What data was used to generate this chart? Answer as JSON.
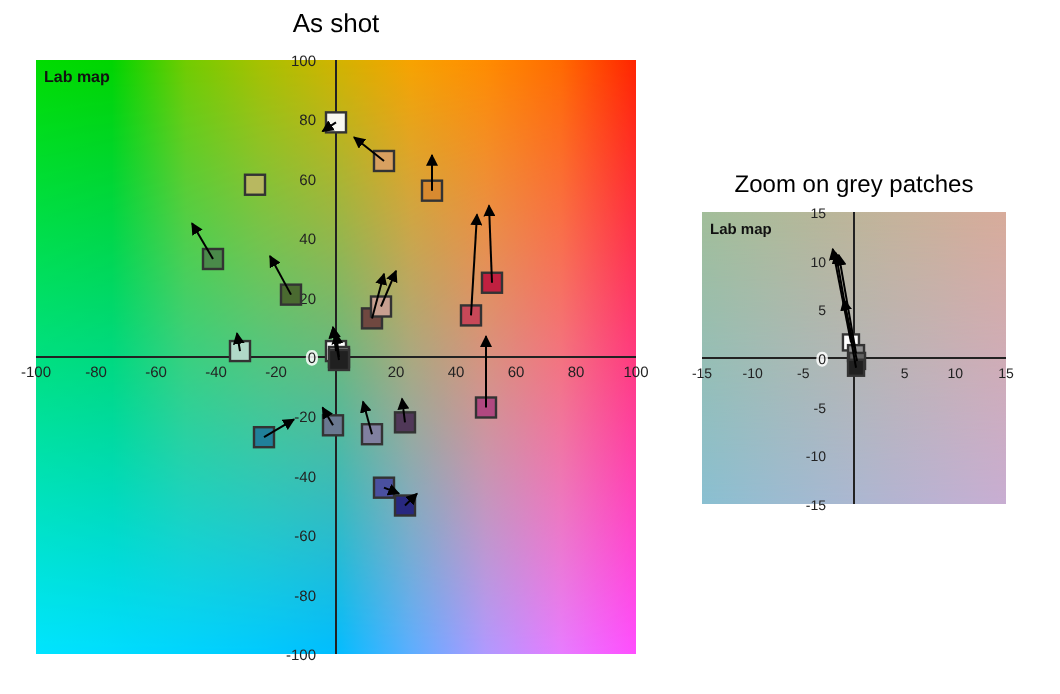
{
  "chart_data": [
    {
      "type": "scatter",
      "title": "As shot",
      "annotations": [
        "Lab map"
      ],
      "xlim": [
        -100,
        100
      ],
      "ylim": [
        -100,
        100
      ],
      "xticks": [
        -100,
        -80,
        -60,
        -40,
        -20,
        20,
        40,
        60,
        80,
        100
      ],
      "yticks": [
        -100,
        -80,
        -60,
        -40,
        -20,
        0,
        20,
        40,
        60,
        80,
        100
      ],
      "marker": "square",
      "series": [
        {
          "type": "line",
          "marker": "none",
          "x": [
            0,
            -4.5
          ],
          "values": [
            79,
            76
          ],
          "color": "#000000"
        },
        {
          "type": "line",
          "marker": "none",
          "x": [
            16,
            6
          ],
          "values": [
            66,
            74
          ],
          "color": "#000000"
        },
        {
          "type": "line",
          "marker": "none",
          "x": [
            32,
            32
          ],
          "values": [
            56,
            68
          ],
          "color": "#000000"
        },
        {
          "type": "line",
          "marker": "none",
          "x": [
            -41,
            -48
          ],
          "values": [
            33,
            45
          ],
          "color": "#000000"
        },
        {
          "type": "line",
          "marker": "none",
          "x": [
            -15,
            -22
          ],
          "values": [
            21,
            34
          ],
          "color": "#000000"
        },
        {
          "type": "line",
          "marker": "none",
          "x": [
            12,
            16
          ],
          "values": [
            13,
            28
          ],
          "color": "#000000"
        },
        {
          "type": "line",
          "marker": "none",
          "x": [
            15,
            20
          ],
          "values": [
            17,
            29
          ],
          "color": "#000000"
        },
        {
          "type": "line",
          "marker": "none",
          "x": [
            45,
            47
          ],
          "values": [
            14,
            48
          ],
          "color": "#000000"
        },
        {
          "type": "line",
          "marker": "none",
          "x": [
            52,
            51
          ],
          "values": [
            25,
            51
          ],
          "color": "#000000"
        },
        {
          "type": "line",
          "marker": "none",
          "x": [
            -32,
            -33
          ],
          "values": [
            2,
            8
          ],
          "color": "#000000"
        },
        {
          "type": "line",
          "marker": "none",
          "x": [
            0,
            -1
          ],
          "values": [
            2,
            10
          ],
          "color": "#000000"
        },
        {
          "type": "line",
          "marker": "none",
          "x": [
            1,
            0
          ],
          "values": [
            0,
            8
          ],
          "color": "#000000"
        },
        {
          "type": "line",
          "marker": "none",
          "x": [
            1,
            -1
          ],
          "values": [
            -1,
            10
          ],
          "color": "#000000"
        },
        {
          "type": "line",
          "marker": "none",
          "x": [
            50,
            50
          ],
          "values": [
            -17,
            7
          ],
          "color": "#000000"
        },
        {
          "type": "line",
          "marker": "none",
          "x": [
            -24,
            -14
          ],
          "values": [
            -27,
            -21
          ],
          "color": "#000000"
        },
        {
          "type": "line",
          "marker": "none",
          "x": [
            -1,
            -4.5
          ],
          "values": [
            -23,
            -17
          ],
          "color": "#000000"
        },
        {
          "type": "line",
          "marker": "none",
          "x": [
            12,
            9
          ],
          "values": [
            -26,
            -15
          ],
          "color": "#000000"
        },
        {
          "type": "line",
          "marker": "none",
          "x": [
            23,
            22
          ],
          "values": [
            -22,
            -14
          ],
          "color": "#000000"
        },
        {
          "type": "line",
          "marker": "none",
          "x": [
            16,
            21
          ],
          "values": [
            -44,
            -46
          ],
          "color": "#000000"
        },
        {
          "type": "line",
          "marker": "none",
          "x": [
            23,
            27
          ],
          "values": [
            -50,
            -46
          ],
          "color": "#000000"
        },
        {
          "x": [
            0,
            16,
            32,
            -27,
            -41,
            -15,
            12,
            15,
            45,
            52,
            -32,
            0,
            1,
            1,
            50,
            -24,
            -1,
            12,
            23,
            16,
            23
          ],
          "values": [
            79,
            66,
            56,
            58,
            33,
            21,
            13,
            17,
            14,
            25,
            2,
            2,
            0,
            -1,
            -17,
            -27,
            -23,
            -26,
            -22,
            -44,
            -50
          ],
          "colors": [
            "#f8f8f0",
            "#d8a060",
            "#d88a30",
            "#b8b860",
            "#4a8a4a",
            "#4a6a30",
            "#704840",
            "#c8a090",
            "#c84858",
            "#c02040",
            "#b0d8c8",
            "#ffffff",
            "#909090",
            "#202020",
            "#b04880",
            "#20809a",
            "#6a7890",
            "#8080a0",
            "#503858",
            "#4a50a0",
            "#282880"
          ]
        }
      ]
    },
    {
      "type": "scatter",
      "title": "Zoom on grey patches",
      "annotations": [
        "Lab map"
      ],
      "xlim": [
        -15,
        15
      ],
      "ylim": [
        -15,
        15
      ],
      "xticks": [
        -15,
        -10,
        -5,
        5,
        10,
        15
      ],
      "yticks": [
        -15,
        -10,
        -5,
        0,
        5,
        10,
        15
      ],
      "marker": "square",
      "series": [
        {
          "type": "line",
          "marker": "none",
          "x": [
            -0.3,
            -2.1
          ],
          "values": [
            1.6,
            11.2
          ],
          "color": "#000000"
        },
        {
          "type": "line",
          "marker": "none",
          "x": [
            0.2,
            -1.5
          ],
          "values": [
            0.5,
            10.6
          ],
          "color": "#000000"
        },
        {
          "type": "line",
          "marker": "none",
          "x": [
            0.3,
            -1
          ],
          "values": [
            -0.3,
            6
          ],
          "color": "#000000"
        },
        {
          "type": "line",
          "marker": "none",
          "x": [
            0.2,
            -1.8
          ],
          "values": [
            -1,
            10.8
          ],
          "color": "#000000"
        },
        {
          "x": [
            -0.3,
            0.2,
            0.3,
            0.2
          ],
          "values": [
            1.6,
            0.5,
            -0.3,
            -1
          ],
          "colors": [
            "#ffffff",
            "#909090",
            "#606060",
            "#202020"
          ]
        }
      ]
    }
  ]
}
